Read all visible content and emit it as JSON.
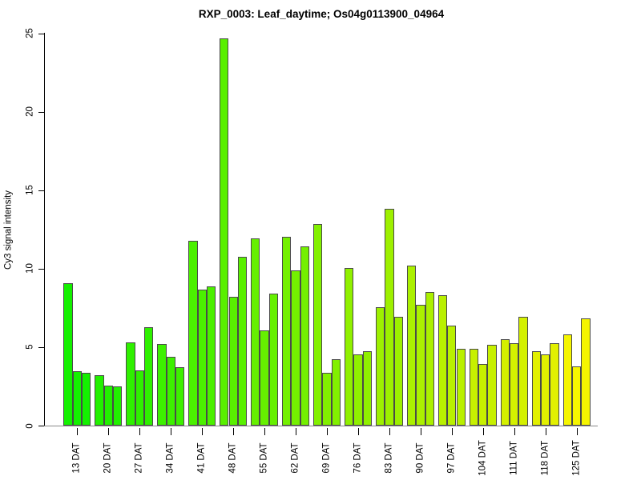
{
  "title": "RXP_0003: Leaf_daytime; Os04g0113900_04964",
  "chart_data": {
    "type": "bar",
    "title": "RXP_0003: Leaf_daytime; Os04g0113900_04964",
    "xlabel": "",
    "ylabel": "Cy3 signal intensity",
    "ylim": [
      0,
      25
    ],
    "yticks": [
      0,
      5,
      10,
      15,
      20,
      25
    ],
    "grid": "off",
    "legend": "none",
    "bars_per_group": 3,
    "bar_border_color": "#4a4a4a",
    "baseline_color": "#8a8a8a",
    "categories": [
      "13 DAT",
      "20 DAT",
      "27 DAT",
      "34 DAT",
      "41 DAT",
      "48 DAT",
      "55 DAT",
      "62 DAT",
      "69 DAT",
      "76 DAT",
      "83 DAT",
      "90 DAT",
      "97 DAT",
      "104 DAT",
      "111 DAT",
      "118 DAT",
      "125 DAT"
    ],
    "groups": [
      {
        "label": "13 DAT",
        "color": "#14F000",
        "values": [
          9.1,
          3.45,
          3.35
        ]
      },
      {
        "label": "20 DAT",
        "color": "#22F000",
        "values": [
          3.2,
          2.55,
          2.5
        ]
      },
      {
        "label": "27 DAT",
        "color": "#2FF000",
        "values": [
          5.3,
          3.5,
          6.25
        ]
      },
      {
        "label": "34 DAT",
        "color": "#3DF000",
        "values": [
          5.2,
          4.4,
          3.7
        ]
      },
      {
        "label": "41 DAT",
        "color": "#4BF000",
        "values": [
          11.8,
          8.65,
          8.85
        ]
      },
      {
        "label": "48 DAT",
        "color": "#59F000",
        "values": [
          24.7,
          8.2,
          10.75
        ]
      },
      {
        "label": "55 DAT",
        "color": "#66F000",
        "values": [
          11.95,
          6.05,
          8.4
        ]
      },
      {
        "label": "62 DAT",
        "color": "#74F000",
        "values": [
          12.05,
          9.9,
          11.4
        ]
      },
      {
        "label": "69 DAT",
        "color": "#82F000",
        "values": [
          12.85,
          3.35,
          4.25
        ]
      },
      {
        "label": "76 DAT",
        "color": "#90F000",
        "values": [
          10.05,
          4.55,
          4.75
        ]
      },
      {
        "label": "83 DAT",
        "color": "#9DF000",
        "values": [
          7.55,
          13.8,
          6.95
        ]
      },
      {
        "label": "90 DAT",
        "color": "#ABF000",
        "values": [
          10.2,
          7.7,
          8.5
        ]
      },
      {
        "label": "97 DAT",
        "color": "#B9F000",
        "values": [
          8.3,
          6.35,
          4.9
        ]
      },
      {
        "label": "104 DAT",
        "color": "#C7F000",
        "values": [
          4.9,
          3.95,
          5.15
        ]
      },
      {
        "label": "111 DAT",
        "color": "#D4F000",
        "values": [
          5.5,
          5.25,
          6.95
        ]
      },
      {
        "label": "118 DAT",
        "color": "#E2F000",
        "values": [
          4.75,
          4.55,
          5.25
        ]
      },
      {
        "label": "125 DAT",
        "color": "#F5F500",
        "values": [
          5.8,
          3.75,
          6.85
        ]
      }
    ]
  }
}
